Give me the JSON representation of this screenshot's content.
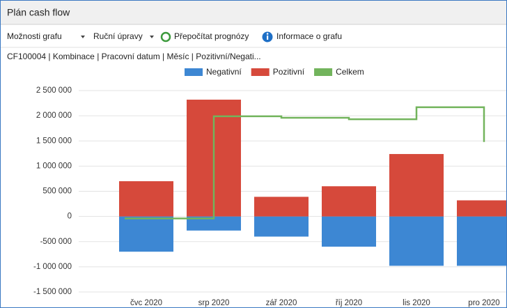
{
  "window": {
    "title": "Plán cash flow"
  },
  "toolbar": {
    "items": [
      "Možnosti grafu",
      "Ruční úpravy",
      "Přepočítat prognózy",
      "Informace o grafu"
    ]
  },
  "chart_data": {
    "type": "combo",
    "subtitle": "CF100004 | Kombinace | Pracovní datum | Měsíc | Pozitivní/Negati...",
    "categories": [
      "čvc 2020",
      "srp 2020",
      "zář 2020",
      "říj 2020",
      "lis 2020",
      "pro 2020"
    ],
    "series": [
      {
        "name": "Negativní",
        "type": "bar",
        "color": "#3d87d3",
        "values": [
          -700000,
          -280000,
          -400000,
          -600000,
          -980000,
          -980000
        ]
      },
      {
        "name": "Pozitivní",
        "type": "bar",
        "color": "#d6493b",
        "values": [
          700000,
          2320000,
          390000,
          600000,
          1240000,
          320000
        ]
      },
      {
        "name": "Celkem",
        "type": "line",
        "color": "#72b45c",
        "values": [
          -40000,
          1990000,
          1960000,
          1930000,
          2170000,
          1480000
        ]
      }
    ],
    "ylim": [
      -1500000,
      2500000
    ],
    "yticks": [
      {
        "value": -1500000,
        "label": "-1 500 000"
      },
      {
        "value": -1000000,
        "label": "-1 000 000"
      },
      {
        "value": -500000,
        "label": "-500 000"
      },
      0,
      {
        "value": 500000,
        "label": "500 000"
      },
      {
        "value": 1000000,
        "label": "1 000 000"
      },
      {
        "value": 1500000,
        "label": "1 500 000"
      },
      {
        "value": 2000000,
        "label": "2 000 000"
      },
      {
        "value": 2500000,
        "label": "2 500 000"
      }
    ],
    "grid": true,
    "legend": "top"
  }
}
